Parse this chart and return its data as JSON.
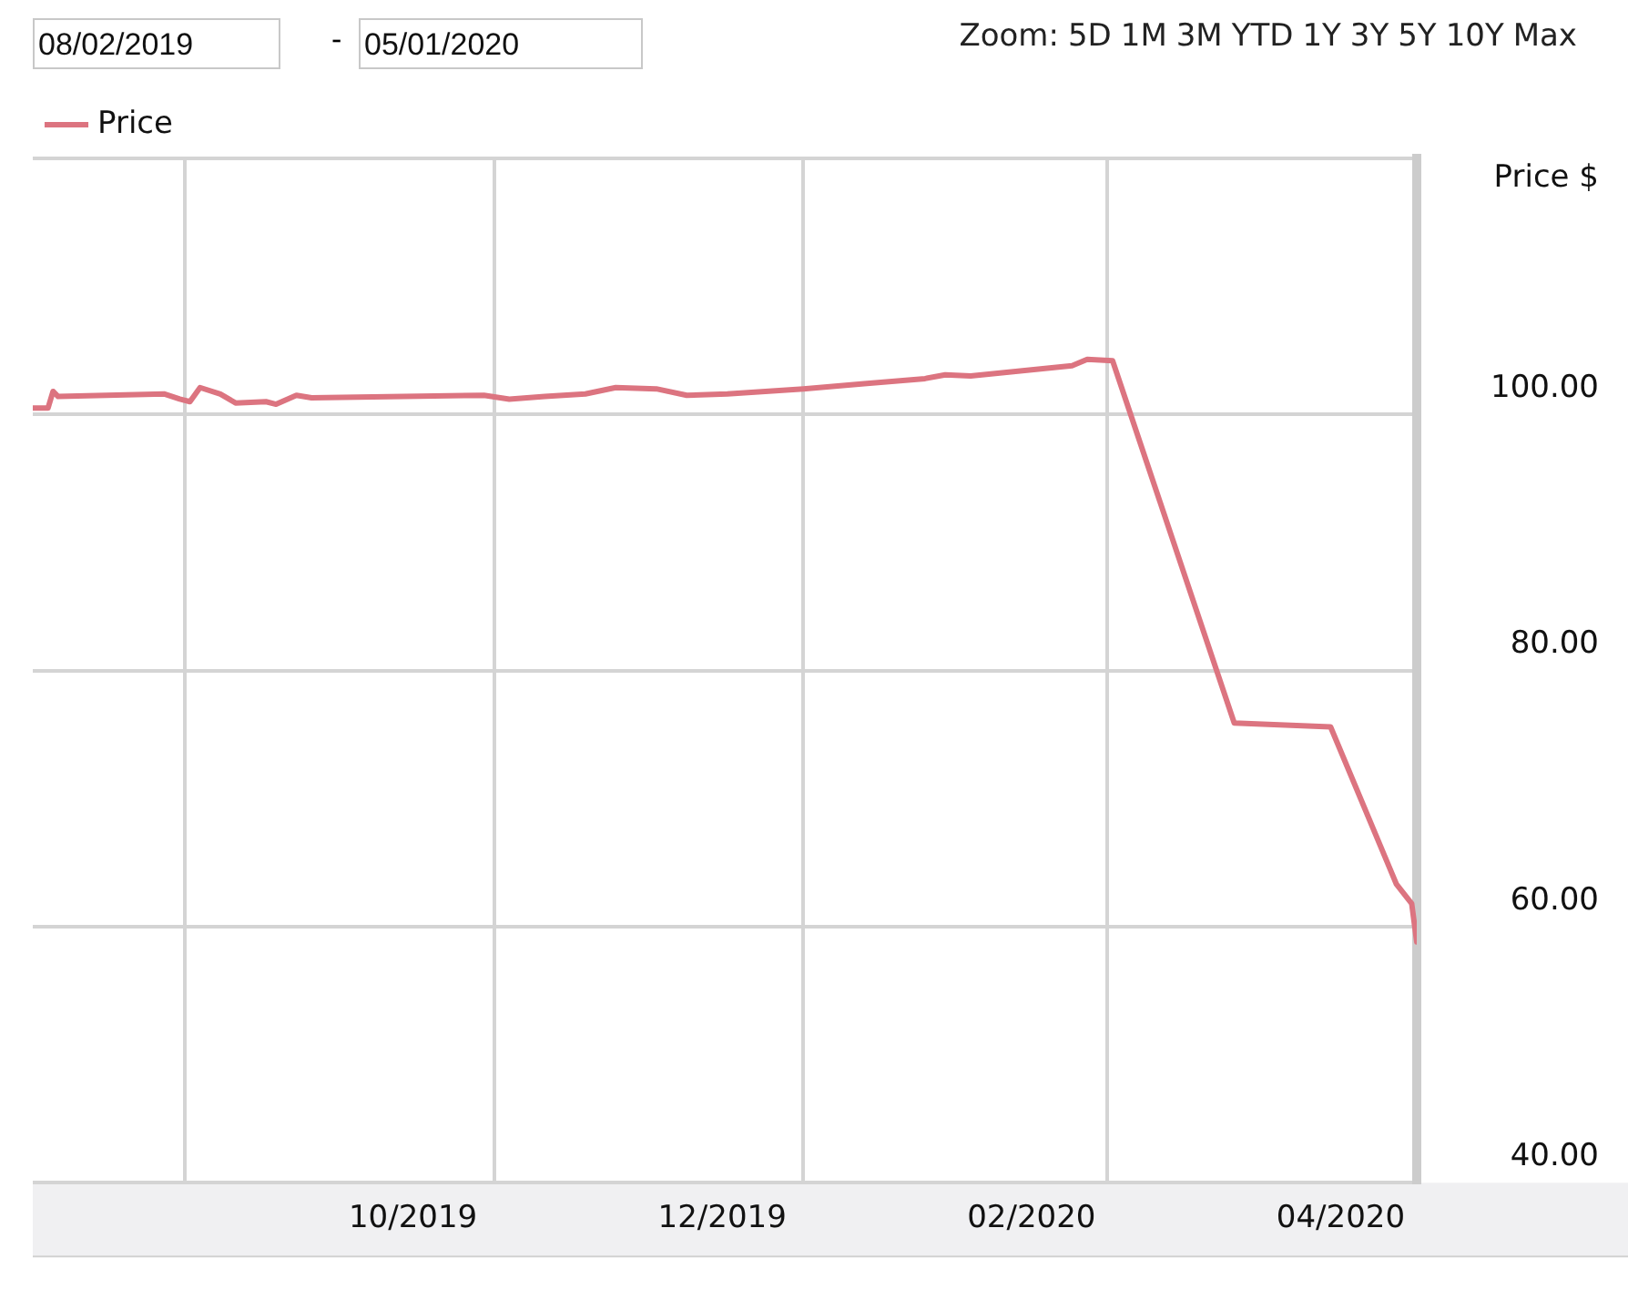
{
  "chart_data": {
    "type": "line",
    "annotations": [
      "08/02/2019",
      "-",
      "05/01/2020",
      "Zoom:",
      "5D",
      "1M",
      "3M",
      "YTD",
      "1Y",
      "3Y",
      "5Y",
      "10Y",
      "Max"
    ],
    "ylabel": "Price $",
    "x": [
      "2019-08-02",
      "2019-08-05",
      "2019-08-06",
      "2019-08-07",
      "2019-08-28",
      "2019-08-31",
      "2019-09-02",
      "2019-09-04",
      "2019-09-08",
      "2019-09-11",
      "2019-09-17",
      "2019-09-19",
      "2019-09-23",
      "2019-09-26",
      "2019-10-30",
      "2019-11-04",
      "2019-11-11",
      "2019-11-19",
      "2019-11-25",
      "2019-12-03",
      "2019-12-09",
      "2019-12-17",
      "2020-01-01",
      "2020-01-13",
      "2020-01-25",
      "2020-01-29",
      "2020-02-03",
      "2020-02-23",
      "2020-02-26",
      "2020-03-02",
      "2020-03-26",
      "2020-04-14",
      "2020-04-27",
      "2020-04-30",
      "2020-05-01"
    ],
    "series": [
      {
        "name": "Price",
        "color": "#dc7480",
        "values": [
          100.5,
          100.5,
          101.8,
          101.4,
          101.6,
          101.2,
          101.0,
          102.1,
          101.6,
          100.9,
          101.0,
          100.8,
          101.5,
          101.3,
          101.5,
          101.2,
          101.4,
          101.6,
          102.1,
          102.0,
          101.5,
          101.6,
          102.0,
          102.4,
          102.8,
          103.1,
          103.0,
          103.8,
          104.3,
          104.2,
          75.9,
          75.6,
          63.3,
          61.8,
          58.8
        ]
      }
    ],
    "xlim": [
      "2019-08-02",
      "2020-05-01"
    ],
    "xticks": [
      {
        "value": "2019-09-01",
        "label": null
      },
      {
        "value": "2019-10-16",
        "label": "10/2019"
      },
      {
        "value": "2019-11-01",
        "label": null
      },
      {
        "value": "2019-12-16",
        "label": "12/2019"
      },
      {
        "value": "2020-01-01",
        "label": null
      },
      {
        "value": "2020-02-15",
        "label": "02/2020"
      },
      {
        "value": "2020-03-01",
        "label": null
      },
      {
        "value": "2020-04-16",
        "label": "04/2020"
      }
    ],
    "ylim": [
      40,
      120
    ],
    "yticks": [
      {
        "value": 40,
        "label": "40.00"
      },
      {
        "value": 60,
        "label": "60.00"
      },
      {
        "value": 80,
        "label": "80.00"
      },
      {
        "value": 100,
        "label": "100.00"
      },
      {
        "value": 120,
        "label": null
      }
    ],
    "grid": true,
    "legend": "top left",
    "marker": "none",
    "line_style": "solid"
  }
}
